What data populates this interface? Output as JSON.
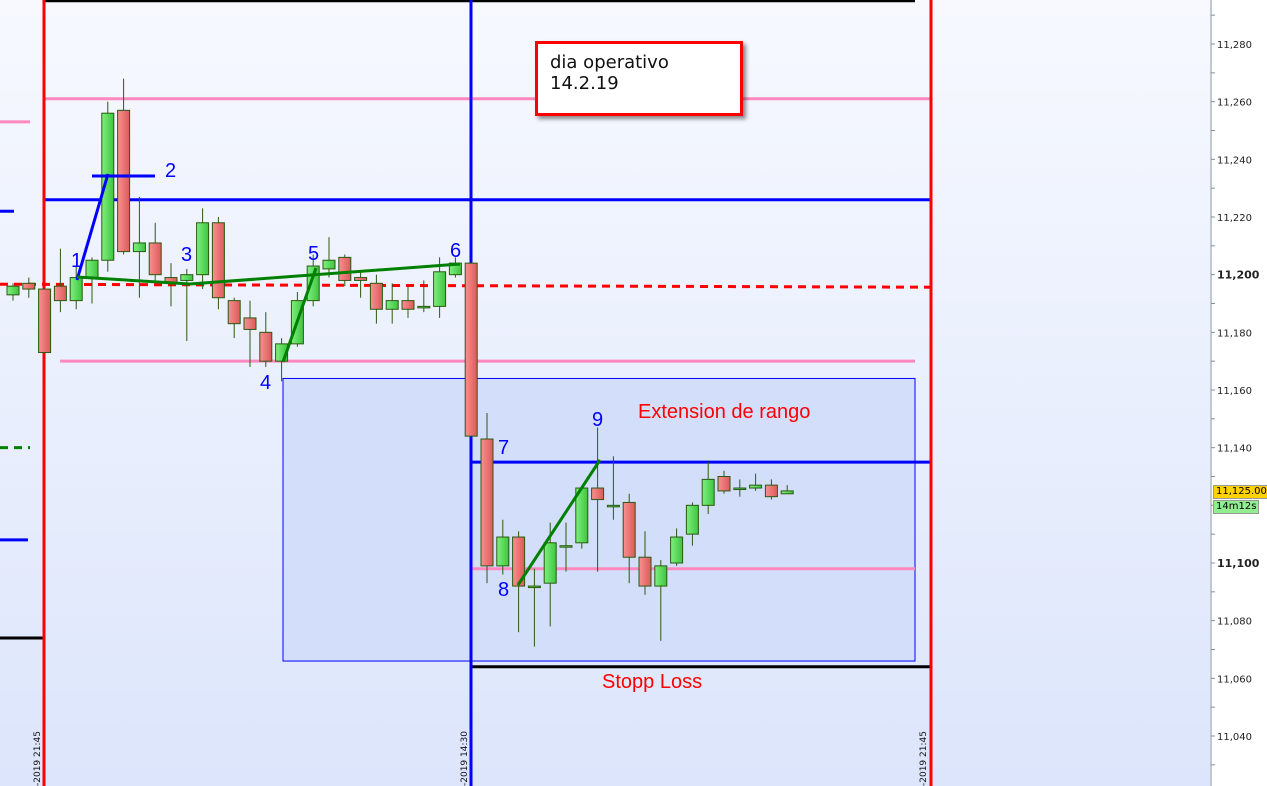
{
  "chart_data": {
    "type": "candlestick",
    "title": "",
    "ylim": [
      11020,
      11298
    ],
    "y_ticks": [
      "11,280",
      "11,260",
      "11,240",
      "11,220",
      "11,200",
      "11,180",
      "11,160",
      "11,140",
      "11,100",
      "11,080",
      "11,060",
      "11,040"
    ],
    "y_tick_values": [
      11280,
      11260,
      11240,
      11220,
      11200,
      11180,
      11160,
      11140,
      11100,
      11080,
      11060,
      11040
    ],
    "bold_ticks": [
      "11,200",
      "11,100"
    ],
    "x_labels": [
      "-2019 21:45",
      "-2019 14:30",
      "-2019 21:45"
    ],
    "last_price_label": "11,125.00",
    "last_price": 11125,
    "countdown_label": "14m12s",
    "colors": {
      "up": "#5ee05e",
      "down": "#ee7070",
      "wick": "#2a5a10",
      "background_top": "#f7f9ff",
      "background_bottom": "#dce5fb",
      "price_tag": "#ffd200",
      "countdown_tag": "#90ee90"
    },
    "candles_ohlc": [
      [
        11193,
        11197,
        11191,
        11196
      ],
      [
        11197,
        11199,
        11192,
        11195
      ],
      [
        11195,
        11195,
        11173,
        11173
      ],
      [
        11196,
        11209,
        11187,
        11191
      ],
      [
        11191,
        11203,
        11188,
        11199
      ],
      [
        11199,
        11206,
        11190,
        11205
      ],
      [
        11205,
        11260,
        11201,
        11256
      ],
      [
        11257,
        11268,
        11207,
        11208
      ],
      [
        11208,
        11227,
        11192,
        11211
      ],
      [
        11211,
        11218,
        11198,
        11200
      ],
      [
        11199,
        11204,
        11189,
        11197
      ],
      [
        11198,
        11202,
        11177,
        11200
      ],
      [
        11200,
        11223,
        11195,
        11218
      ],
      [
        11218,
        11220,
        11188,
        11192
      ],
      [
        11191,
        11192,
        11178,
        11183
      ],
      [
        11185,
        11191,
        11168,
        11181
      ],
      [
        11180,
        11187,
        11168,
        11170
      ],
      [
        11170,
        11178,
        11163,
        11176
      ],
      [
        11176,
        11194,
        11175,
        11191
      ],
      [
        11191,
        11207,
        11189,
        11203
      ],
      [
        11202,
        11213,
        11199,
        11205
      ],
      [
        11206,
        11207,
        11196,
        11198
      ],
      [
        11199,
        11201,
        11192,
        11198
      ],
      [
        11197,
        11200,
        11183,
        11188
      ],
      [
        11188,
        11197,
        11183,
        11191
      ],
      [
        11191,
        11196,
        11185,
        11188
      ],
      [
        11189,
        11198,
        11187,
        11189
      ],
      [
        11189,
        11206,
        11185,
        11201
      ],
      [
        11200,
        11206,
        11199,
        11204
      ],
      [
        11204,
        11204,
        11144,
        11144
      ],
      [
        11143,
        11152,
        11093,
        11099
      ],
      [
        11099,
        11115,
        11096,
        11109
      ],
      [
        11109,
        11111,
        11076,
        11092
      ],
      [
        11092,
        11098,
        11071,
        11092
      ],
      [
        11093,
        11114,
        11078,
        11107
      ],
      [
        11106,
        11114,
        11097,
        11106
      ],
      [
        11107,
        11126,
        11105,
        11126
      ],
      [
        11126,
        11147,
        11097,
        11122
      ],
      [
        11120,
        11137,
        11115,
        11120
      ],
      [
        11121,
        11124,
        11093,
        11102
      ],
      [
        11102,
        11111,
        11089,
        11092
      ],
      [
        11092,
        11101,
        11073,
        11099
      ],
      [
        11100,
        11112,
        11099,
        11109
      ],
      [
        11110,
        11121,
        11106,
        11120
      ],
      [
        11120,
        11135,
        11117,
        11129
      ],
      [
        11130,
        11132,
        11124,
        11125
      ],
      [
        11126,
        11129,
        11123,
        11126
      ],
      [
        11126,
        11131,
        11125,
        11127
      ],
      [
        11127,
        11129,
        11122,
        11123
      ],
      [
        11124,
        11127,
        11124,
        11125
      ]
    ],
    "drawings": {
      "horizontal_levels": [
        {
          "price": 11295,
          "color": "#000000"
        },
        {
          "price": 11261,
          "color": "#ff88c0"
        },
        {
          "price": 11226,
          "color": "#0000ff"
        },
        {
          "price": 11196,
          "color": "#ff0000",
          "dashed": true
        },
        {
          "price": 11170,
          "color": "#ff88c0"
        },
        {
          "price": 11135,
          "color": "#0000ff"
        },
        {
          "price": 11098,
          "color": "#ff88c0"
        },
        {
          "price": 11064,
          "color": "#000000"
        },
        {
          "price": 11074,
          "color": "#000000"
        },
        {
          "price": 11253,
          "color": "#ff88c0"
        },
        {
          "price": 11222,
          "color": "#0000ff"
        },
        {
          "price": 11140,
          "color": "#008000",
          "dashed": true
        },
        {
          "price": 11108,
          "color": "#0000ff"
        }
      ],
      "range_box": {
        "top": 11164,
        "bottom": 11066,
        "fill": "#d3dffa",
        "border": "#0000ff"
      },
      "point_labels": [
        "1",
        "2",
        "3",
        "4",
        "5",
        "6",
        "7",
        "8",
        "9"
      ],
      "text_labels": {
        "extension": "Extension de rango",
        "stop": "Stopp Loss"
      },
      "note": "dia operativo 14.2.19"
    }
  }
}
